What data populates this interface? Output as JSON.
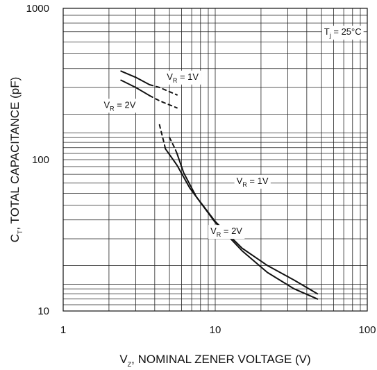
{
  "chart_data": {
    "type": "line",
    "title": "",
    "xlabel_parts": {
      "main": "V",
      "sub": "Z",
      "rest": ", NOMINAL ZENER VOLTAGE (V)"
    },
    "ylabel_parts": {
      "main": "C",
      "sub": "T",
      "rest": ", TOTAL CAPACITANCE (pF)"
    },
    "x_scale": "log",
    "y_scale": "log",
    "xlim": [
      1,
      100
    ],
    "ylim": [
      10,
      1000
    ],
    "x_ticks": [
      {
        "value": 1,
        "label": "1"
      },
      {
        "value": 10,
        "label": "10"
      },
      {
        "value": 100,
        "label": "100"
      }
    ],
    "y_ticks": [
      {
        "value": 10,
        "label": "10"
      },
      {
        "value": 100,
        "label": "100"
      },
      {
        "value": 1000,
        "label": "1000"
      }
    ],
    "grid": true,
    "series": [
      {
        "name": "VR = 1V",
        "segments": [
          {
            "style": "solid",
            "points": [
              [
                2.4,
                385
              ],
              [
                3.0,
                350
              ],
              [
                3.7,
                313
              ]
            ]
          },
          {
            "style": "dashed",
            "points": [
              [
                3.7,
                313
              ],
              [
                4.3,
                300
              ],
              [
                5.6,
                268
              ]
            ]
          },
          {
            "style": "dashed",
            "points": [
              [
                5.0,
                140
              ],
              [
                5.4,
                120
              ],
              [
                5.6,
                110
              ]
            ]
          },
          {
            "style": "solid",
            "points": [
              [
                5.6,
                110
              ],
              [
                6.2,
                82
              ],
              [
                7.5,
                57
              ],
              [
                10,
                39
              ],
              [
                15,
                26
              ],
              [
                22,
                20
              ],
              [
                33,
                16
              ],
              [
                47,
                13
              ]
            ]
          }
        ]
      },
      {
        "name": "VR = 2V",
        "segments": [
          {
            "style": "solid",
            "points": [
              [
                2.4,
                335
              ],
              [
                3.0,
                300
              ],
              [
                3.7,
                265
              ]
            ]
          },
          {
            "style": "dashed",
            "points": [
              [
                3.7,
                265
              ],
              [
                4.3,
                245
              ],
              [
                5.6,
                220
              ]
            ]
          },
          {
            "style": "dashed",
            "points": [
              [
                4.3,
                170
              ],
              [
                4.6,
                130
              ],
              [
                4.7,
                118
              ]
            ]
          },
          {
            "style": "solid",
            "points": [
              [
                4.7,
                118
              ],
              [
                5.6,
                92
              ],
              [
                6.8,
                65
              ],
              [
                10,
                38.5
              ],
              [
                15,
                25
              ],
              [
                22,
                18
              ],
              [
                33,
                14
              ],
              [
                47,
                12
              ]
            ]
          }
        ]
      }
    ],
    "annotations": [
      {
        "main": "V",
        "sub": "R",
        "rest": " = 1V",
        "at": [
          4.8,
          356
        ]
      },
      {
        "main": "V",
        "sub": "R",
        "rest": " = 2V",
        "at": [
          1.85,
          232
        ]
      },
      {
        "main": "V",
        "sub": "R",
        "rest": " = 1V",
        "at": [
          13.8,
          73
        ]
      },
      {
        "main": "V",
        "sub": "R",
        "rest": " = 2V",
        "at": [
          9.3,
          34
        ]
      },
      {
        "main": "T",
        "sub": "j",
        "rest": " = 25°C",
        "at": [
          52,
          705
        ]
      }
    ]
  }
}
